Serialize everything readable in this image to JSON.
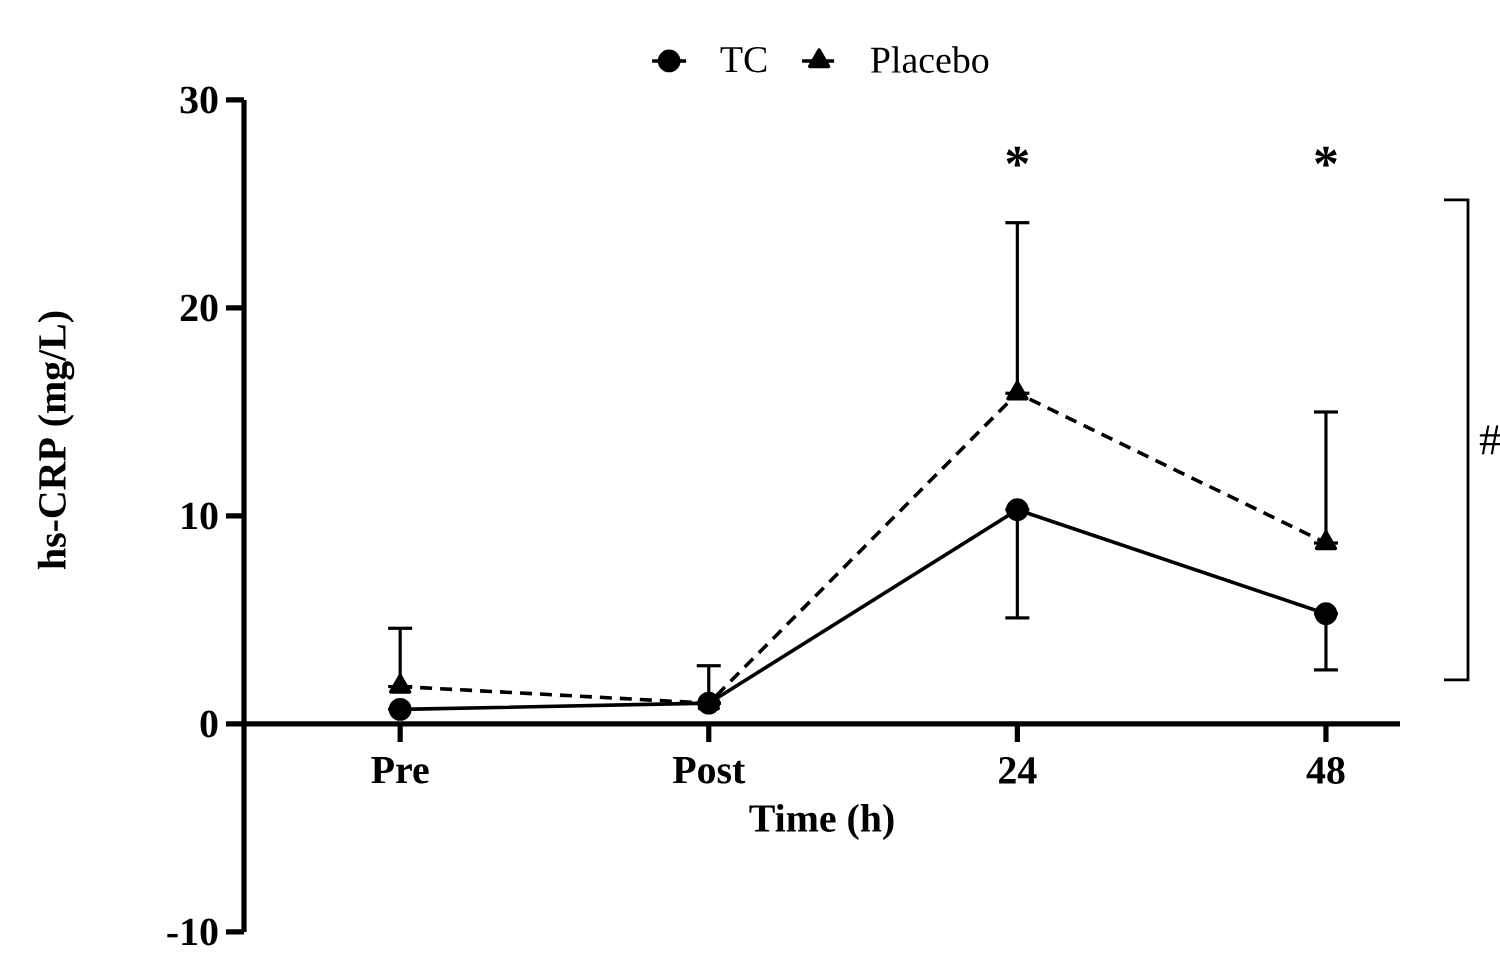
{
  "chart_data": {
    "type": "line",
    "xlabel": "Time (h)",
    "ylabel": "hs-CRP (mg/L)",
    "categories": [
      "Pre",
      "Post",
      "24",
      "48"
    ],
    "series": [
      {
        "name": "TC",
        "color": "#000000",
        "values": [
          0.7,
          1.0,
          10.3,
          5.3
        ],
        "marker": "circle",
        "line_style": "solid",
        "errors": [
          null,
          null,
          [
            5.1,
            10.3
          ],
          [
            2.6,
            5.3
          ]
        ]
      },
      {
        "name": "Placebo",
        "color": "#000000",
        "values": [
          1.8,
          1.0,
          15.9,
          8.7
        ],
        "marker": "triangle",
        "line_style": "dashed",
        "errors": [
          [
            1.8,
            4.6
          ],
          [
            1.0,
            2.8
          ],
          [
            15.9,
            24.1
          ],
          [
            8.7,
            15.0
          ]
        ]
      }
    ],
    "ylim": [
      -10,
      30
    ],
    "yticks": [
      -10,
      0,
      10,
      20,
      30
    ],
    "legend": "top",
    "annotations": [
      "*",
      "*",
      "#"
    ]
  }
}
